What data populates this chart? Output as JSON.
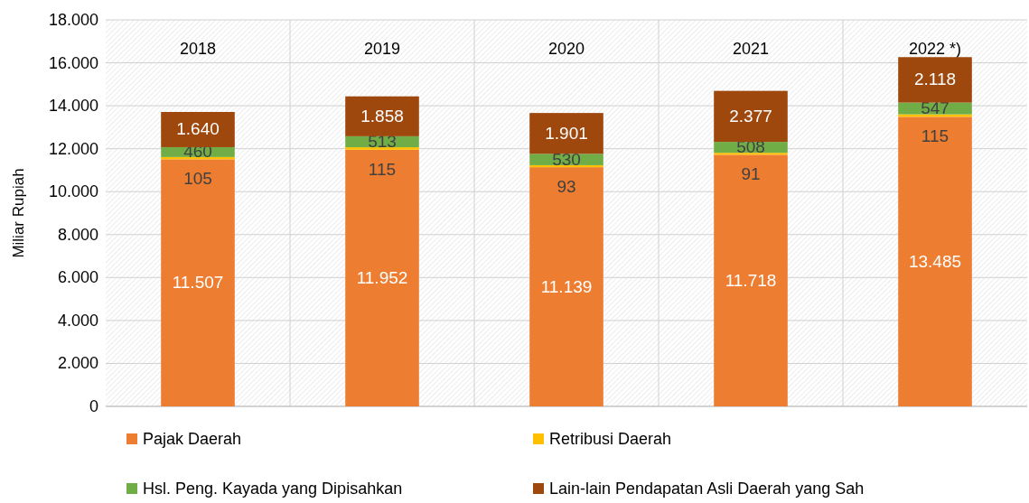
{
  "chart_data": {
    "type": "bar",
    "stacked": true,
    "ylabel": "Miliar Rupiah",
    "categories": [
      "2018",
      "2019",
      "2020",
      "2021",
      "2022 *)"
    ],
    "series": [
      {
        "name": "Pajak Daerah",
        "color": "#ed7d31",
        "values": [
          11507,
          11952,
          11139,
          11718,
          13485
        ],
        "value_labels": [
          "11.507",
          "11.952",
          "11.139",
          "11.718",
          "13.485"
        ]
      },
      {
        "name": "Retribusi Daerah",
        "color": "#ffc000",
        "values": [
          105,
          115,
          93,
          91,
          115
        ],
        "value_labels": [
          "105",
          "115",
          "93",
          "91",
          "115"
        ]
      },
      {
        "name": "Hsl. Peng. Kayada yang Dipisahkan",
        "color": "#70ad47",
        "values": [
          460,
          513,
          530,
          508,
          547
        ],
        "value_labels": [
          "460",
          "513",
          "530",
          "508",
          "547"
        ]
      },
      {
        "name": "Lain-lain Pendapatan Asli Daerah yang Sah",
        "color": "#9e480e",
        "values": [
          1640,
          1858,
          1901,
          2377,
          2118
        ],
        "value_labels": [
          "1.640",
          "1.858",
          "1.901",
          "2.377",
          "2.118"
        ]
      }
    ],
    "ylim": [
      0,
      18000
    ],
    "yticks": [
      0,
      {
        "value": 2000,
        "label": "2.000"
      },
      {
        "value": 4000,
        "label": "4.000"
      },
      {
        "value": 6000,
        "label": "6.000"
      },
      {
        "value": 8000,
        "label": "8.000"
      },
      {
        "value": 10000,
        "label": "10.000"
      },
      {
        "value": 12000,
        "label": "12.000"
      },
      {
        "value": 14000,
        "label": "14.000"
      },
      {
        "value": 16000,
        "label": "16.000"
      },
      {
        "value": 18000,
        "label": "18.000"
      }
    ],
    "grid": "y",
    "legend": "bottom"
  }
}
